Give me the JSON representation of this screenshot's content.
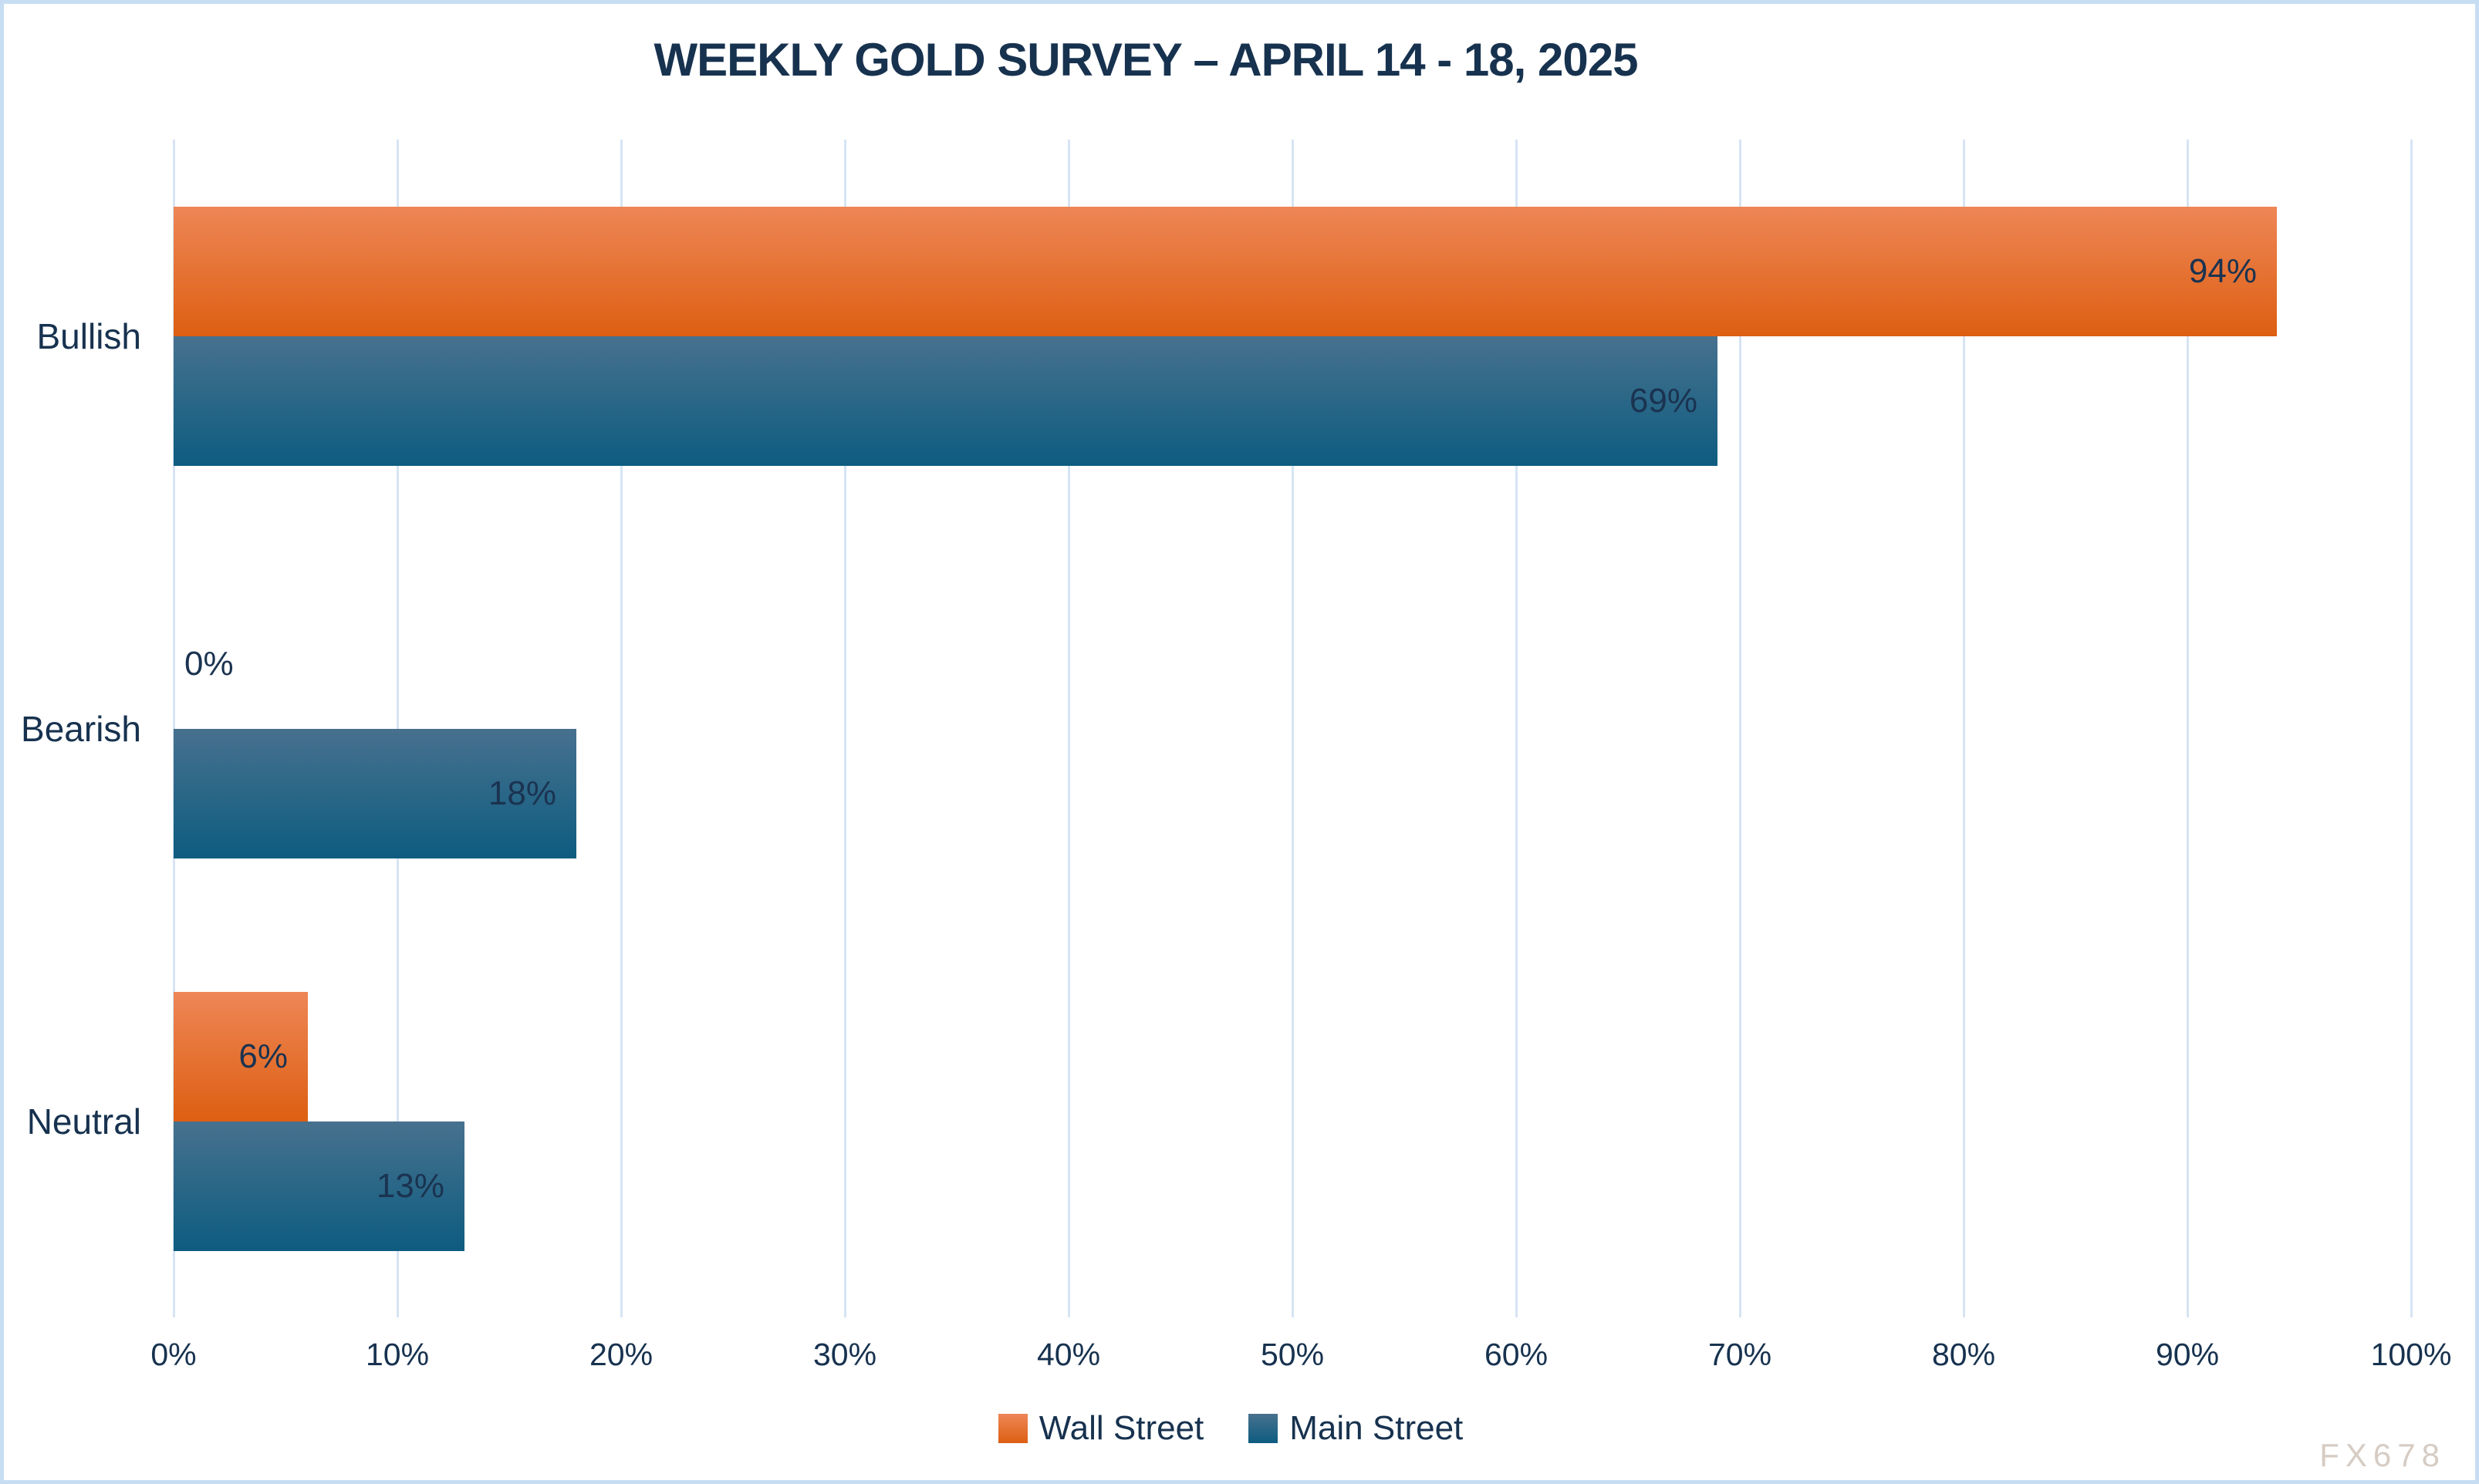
{
  "title": "WEEKLY GOLD SURVEY – APRIL 14 - 18, 2025",
  "watermark": "FX678",
  "colors": {
    "title_text": "#17324f",
    "label_text": "#1a3350",
    "orange_top": "#ee8656",
    "orange_bottom": "#dd5f12",
    "blue_top": "#47718e",
    "blue_bottom": "#0d5c80",
    "gridline": "#d6e4f4",
    "page_border": "#c7ddf1",
    "watermark_text": "#d6ccc4"
  },
  "chart_data": {
    "type": "bar",
    "orientation": "horizontal",
    "title": "WEEKLY GOLD SURVEY – APRIL 14 - 18, 2025",
    "categories": [
      "Bullish",
      "Bearish",
      "Neutral"
    ],
    "series": [
      {
        "name": "Wall Street",
        "color_key": "orange",
        "values": [
          94,
          0,
          6
        ]
      },
      {
        "name": "Main Street",
        "color_key": "blue",
        "values": [
          69,
          18,
          13
        ]
      }
    ],
    "value_suffix": "%",
    "data_labels": [
      "94%",
      "0%",
      "6%",
      "69%",
      "18%",
      "13%"
    ],
    "xlabel": "",
    "ylabel": "",
    "xlim": [
      0,
      100
    ],
    "x_ticks": [
      "0%",
      "10%",
      "20%",
      "30%",
      "40%",
      "50%",
      "60%",
      "70%",
      "80%",
      "90%",
      "100%"
    ],
    "grid": true,
    "legend_position": "bottom"
  }
}
